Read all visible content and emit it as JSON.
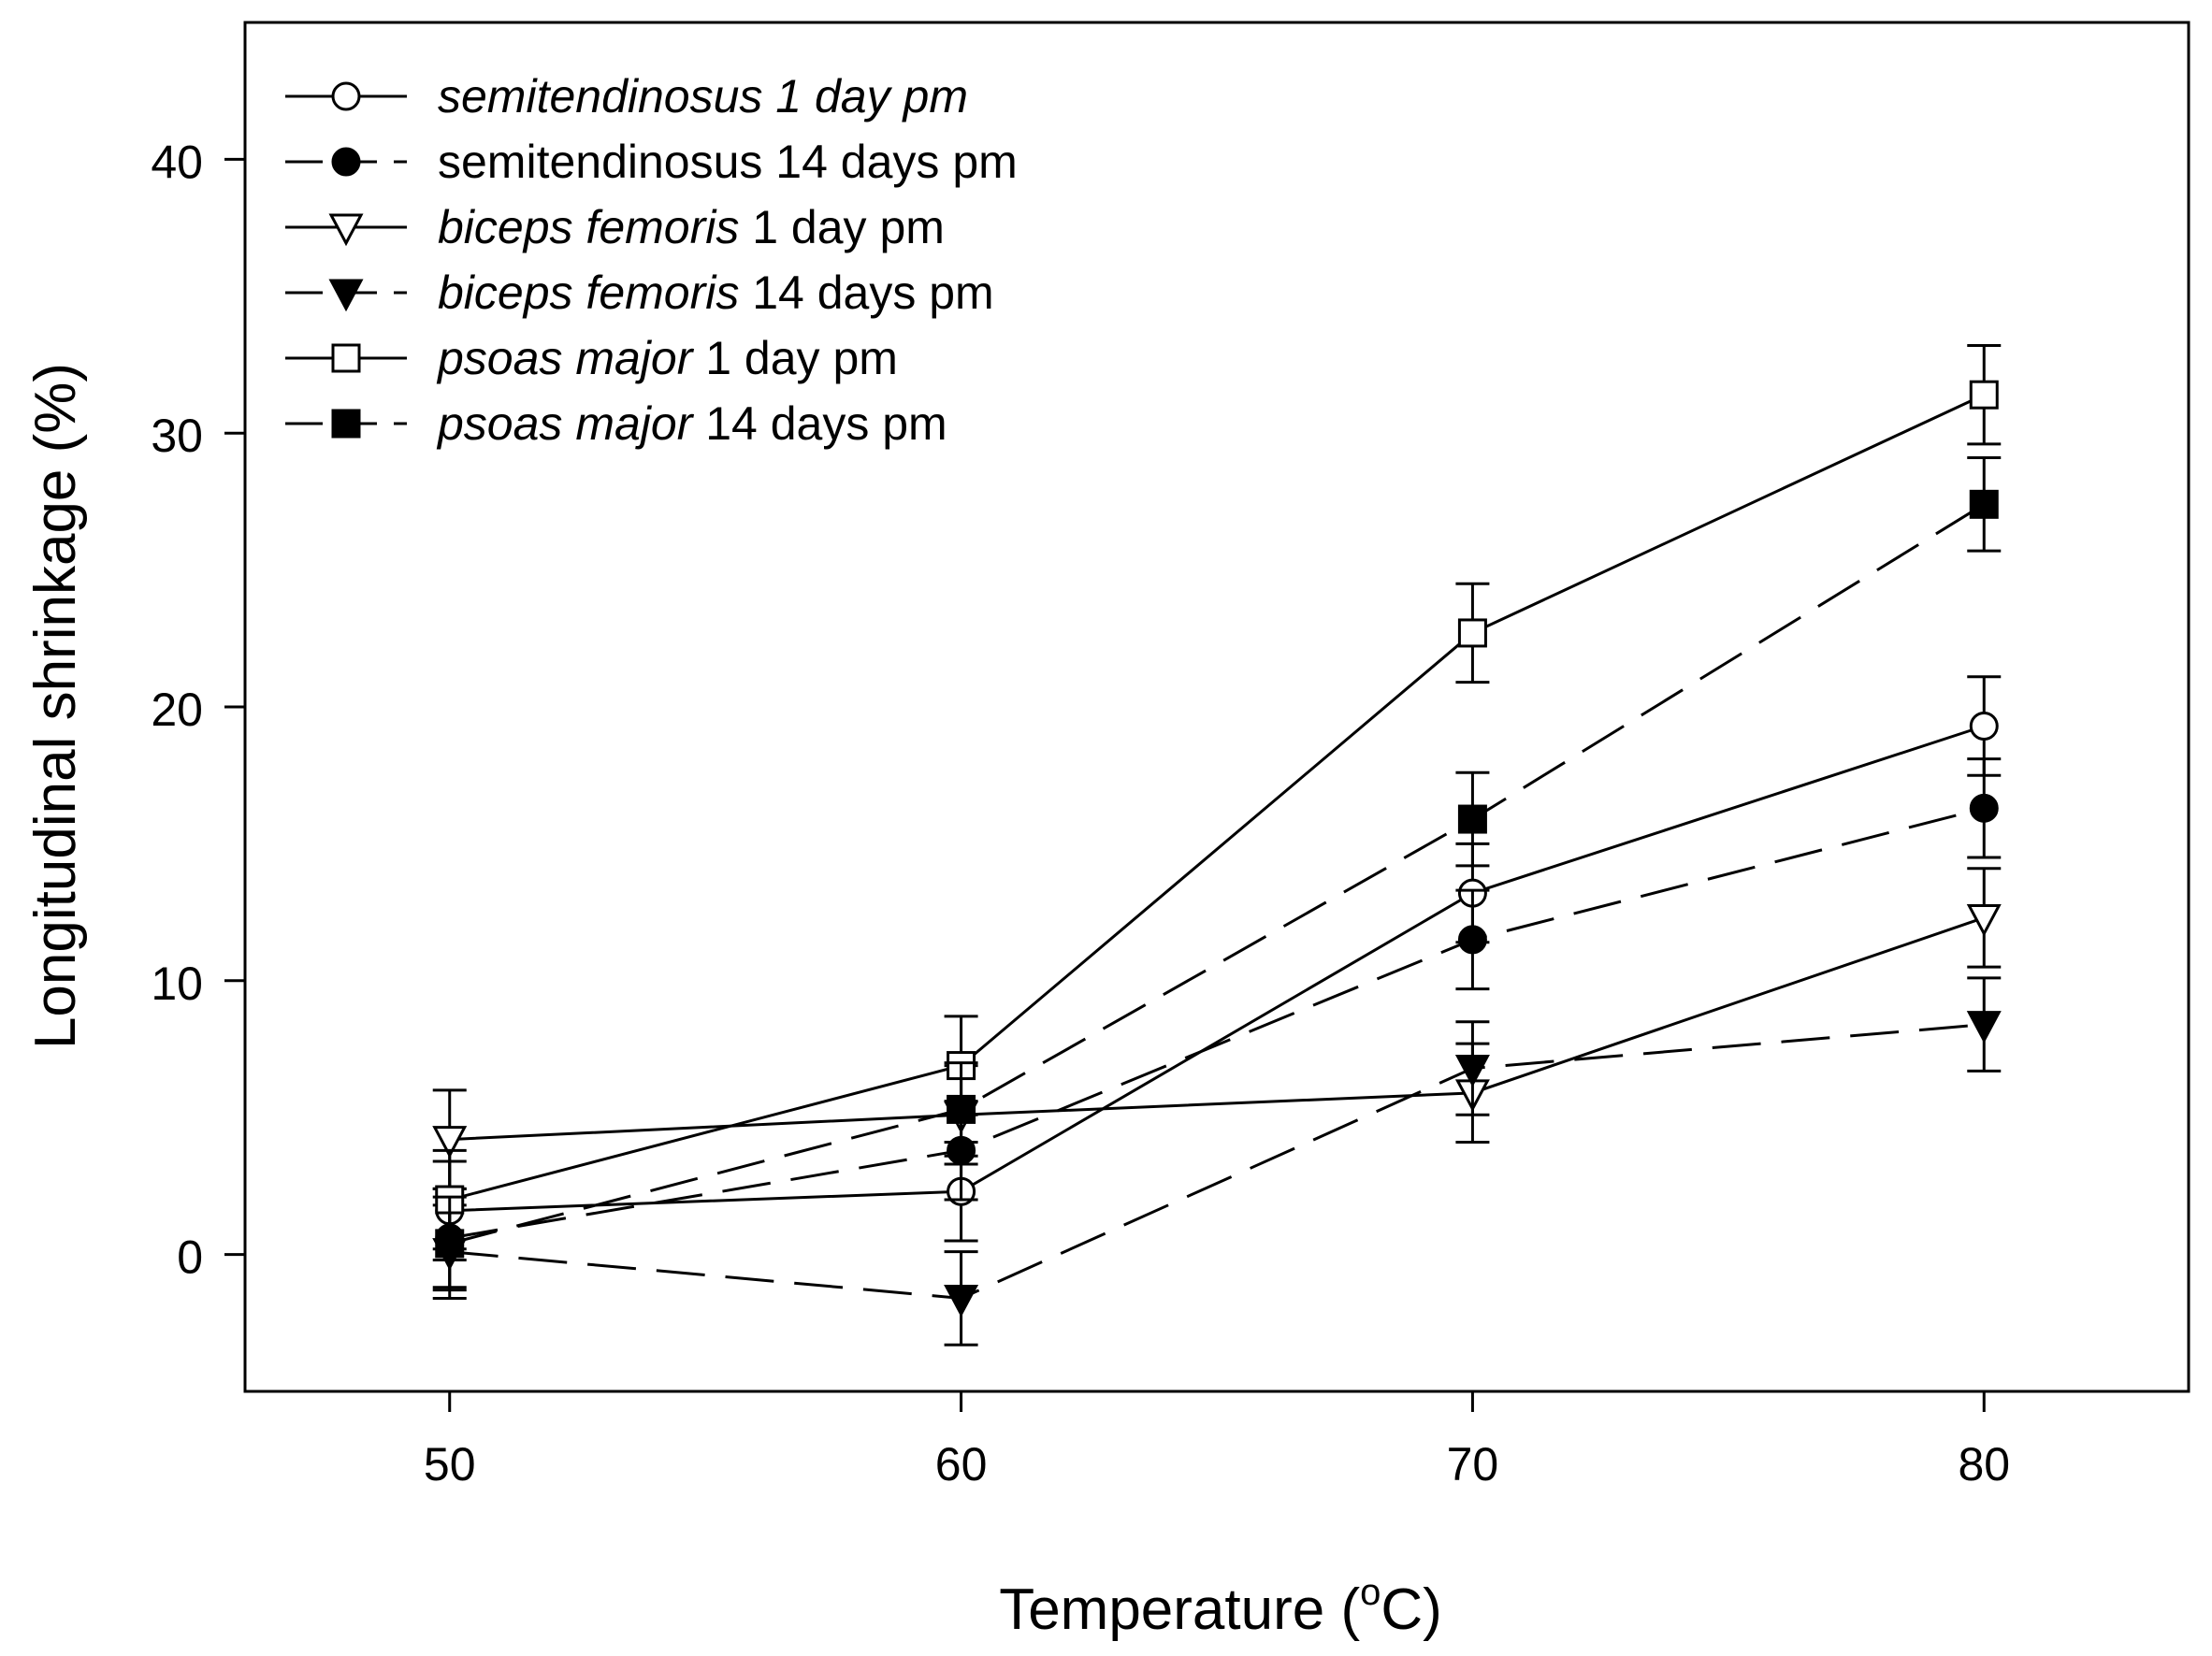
{
  "chart_data": {
    "type": "line",
    "title": "",
    "xlabel": "Temperature",
    "xlabel_unit_prefix": "(",
    "xlabel_unit_sup": "o",
    "xlabel_unit_suffix": "C)",
    "ylabel": "Longitudinal shrinkage (%)",
    "xlim": [
      46,
      84
    ],
    "ylim": [
      -5,
      45
    ],
    "xticks": [
      50,
      60,
      70,
      80
    ],
    "yticks": [
      0,
      10,
      20,
      30,
      40
    ],
    "grid": false,
    "legend_position": "top-left",
    "x": [
      50,
      60,
      70,
      80
    ],
    "series": [
      {
        "name": "semitendinosus 1 day pm",
        "legend_parts": [
          {
            "text": "semitendinosus 1 day pm",
            "italic": true
          }
        ],
        "marker": "circle-open",
        "line": "solid",
        "values": [
          1.6,
          2.3,
          13.2,
          19.3
        ],
        "errors": [
          1.8,
          1.8,
          1.8,
          1.8
        ]
      },
      {
        "name": "semitendinosus 14 days pm",
        "legend_parts": [
          {
            "text": "semitendinosus 14 days pm",
            "italic": false
          }
        ],
        "marker": "circle-filled",
        "line": "dashed",
        "values": [
          0.6,
          3.8,
          11.5,
          16.3
        ],
        "errors": [
          1.8,
          1.8,
          1.8,
          1.8
        ]
      },
      {
        "name": "biceps femoris 1 day pm",
        "legend_parts": [
          {
            "text": "biceps femoris",
            "italic": true
          },
          {
            "text": " 1 day pm",
            "italic": false
          }
        ],
        "marker": "triangle-down-open",
        "line": "solid",
        "values": [
          4.2,
          5.1,
          5.9,
          12.3
        ],
        "errors": [
          1.8,
          1.8,
          1.8,
          1.8
        ]
      },
      {
        "name": "biceps femoris 14 days pm",
        "legend_parts": [
          {
            "text": "biceps femoris",
            "italic": true
          },
          {
            "text": " 14 days pm",
            "italic": false
          }
        ],
        "marker": "triangle-down-filled",
        "line": "dashed",
        "values": [
          0.1,
          -1.6,
          6.8,
          8.4
        ],
        "errors": [
          1.7,
          1.7,
          1.7,
          1.7
        ]
      },
      {
        "name": "psoas major 1 day pm",
        "legend_parts": [
          {
            "text": "psoas major",
            "italic": true
          },
          {
            "text": " 1 day pm",
            "italic": false
          }
        ],
        "marker": "square-open",
        "line": "solid",
        "values": [
          2.0,
          6.9,
          22.7,
          31.4
        ],
        "errors": [
          1.8,
          1.8,
          1.8,
          1.8
        ]
      },
      {
        "name": "psoas major 14 days pm",
        "legend_parts": [
          {
            "text": "psoas major",
            "italic": true
          },
          {
            "text": " 14 days pm",
            "italic": false
          }
        ],
        "marker": "square-filled",
        "line": "dashed",
        "values": [
          0.4,
          5.3,
          15.9,
          27.4
        ],
        "errors": [
          1.7,
          1.7,
          1.7,
          1.7
        ]
      }
    ]
  }
}
